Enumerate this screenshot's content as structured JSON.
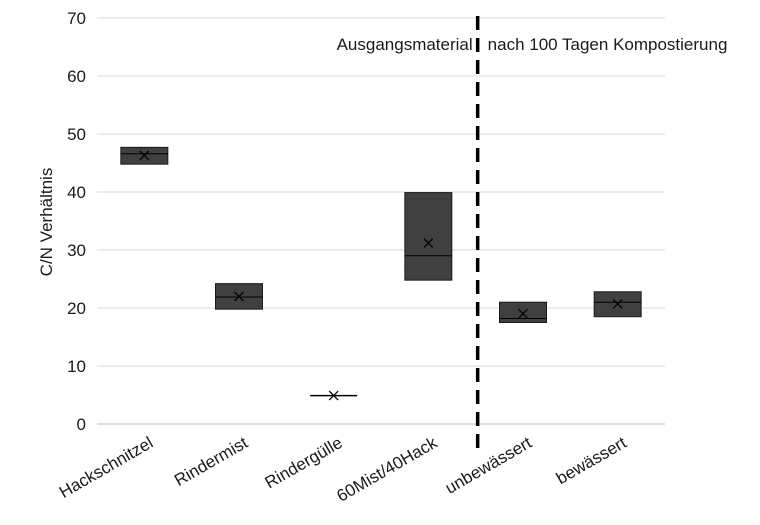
{
  "chart_data": {
    "type": "box",
    "ylabel": "C/N Verhältnis",
    "ylim": [
      0,
      70
    ],
    "yticks": [
      0,
      10,
      20,
      30,
      40,
      50,
      60,
      70
    ],
    "grid": true,
    "annotations": {
      "left": "Ausgangsmaterial",
      "right": "nach 100 Tagen Kompostierung"
    },
    "divider_after_category": "60Mist/40Hack",
    "box_color": "#404040",
    "categories": [
      "Hackschnitzel",
      "Rindermist",
      "Rindergülle",
      "60Mist/40Hack",
      "unbewässert",
      "bewässert"
    ],
    "boxes": [
      {
        "category": "Hackschnitzel",
        "q1": 44.8,
        "median": 46.6,
        "q3": 47.7,
        "mean": 46.3
      },
      {
        "category": "Rindermist",
        "q1": 19.8,
        "median": 21.9,
        "q3": 24.2,
        "mean": 22.0
      },
      {
        "category": "Rindergülle",
        "q1": 4.9,
        "median": 4.9,
        "q3": 4.9,
        "mean": 4.9
      },
      {
        "category": "60Mist/40Hack",
        "q1": 24.8,
        "median": 29.0,
        "q3": 39.9,
        "mean": 31.2
      },
      {
        "category": "unbewässert",
        "q1": 17.5,
        "median": 18.2,
        "q3": 21.0,
        "mean": 19.0
      },
      {
        "category": "bewässert",
        "q1": 18.5,
        "median": 21.0,
        "q3": 22.8,
        "mean": 20.7
      }
    ]
  }
}
